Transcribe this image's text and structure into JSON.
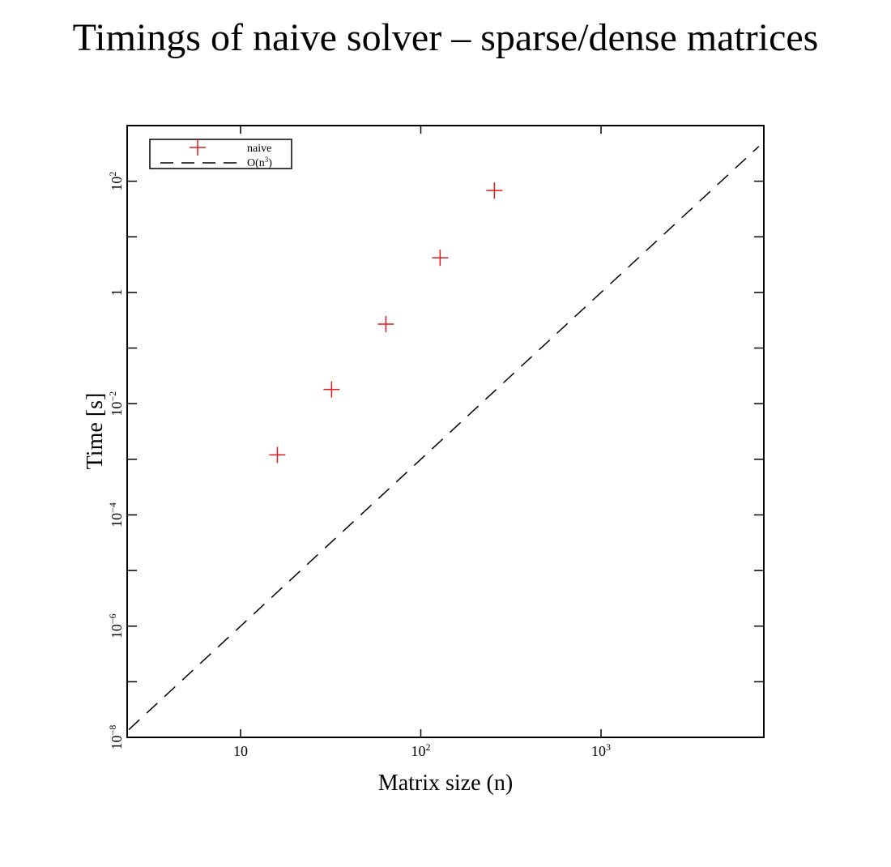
{
  "chart_data": {
    "type": "scatter",
    "title": "Timings of naive solver – sparse/dense matrices",
    "xlabel": "Matrix size (n)",
    "ylabel": "Time [s]",
    "xscale": "log",
    "yscale": "log",
    "xlim": [
      2.35,
      8000
    ],
    "ylim": [
      1e-08,
      1000
    ],
    "x_tick_labels": [
      {
        "value": 10,
        "base": "10",
        "exp": ""
      },
      {
        "value": 100,
        "base": "10",
        "exp": "2"
      },
      {
        "value": 1000,
        "base": "10",
        "exp": "3"
      }
    ],
    "y_tick_labels": [
      {
        "value": 1e-08,
        "base": "10",
        "exp": "−8"
      },
      {
        "value": 1e-06,
        "base": "10",
        "exp": "−6"
      },
      {
        "value": 0.0001,
        "base": "10",
        "exp": "−4"
      },
      {
        "value": 0.01,
        "base": "10",
        "exp": "−2"
      },
      {
        "value": 1,
        "base": "1",
        "exp": ""
      },
      {
        "value": 100,
        "base": "10",
        "exp": "2"
      }
    ],
    "legend": {
      "placement": "top-left",
      "entries": [
        {
          "name": "naive",
          "label_base": "naive",
          "label_sup": "",
          "label_tail": ""
        },
        {
          "name": "O(n³)",
          "label_base": "O(n",
          "label_sup": "3",
          "label_tail": ")"
        }
      ]
    },
    "series": [
      {
        "name": "naive",
        "type": "scatter",
        "marker": "plus",
        "color": "#e41a1c",
        "points": [
          {
            "x": 16,
            "y": 0.0012
          },
          {
            "x": 32,
            "y": 0.018
          },
          {
            "x": 64,
            "y": 0.27
          },
          {
            "x": 128,
            "y": 4.2
          },
          {
            "x": 256,
            "y": 68
          }
        ]
      },
      {
        "name": "O(n³)",
        "type": "line",
        "style": "dashed",
        "color": "#000000",
        "points": [
          {
            "x": 2.4,
            "y": 1.38e-08
          },
          {
            "x": 7500,
            "y": 422
          }
        ]
      }
    ],
    "grid": false
  }
}
